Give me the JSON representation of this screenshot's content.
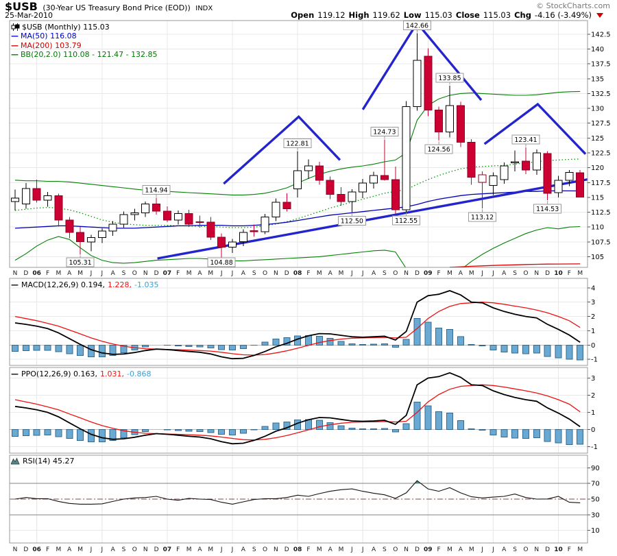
{
  "header": {
    "symbol": "$USB",
    "title": "(30-Year US Treasury Bond Price (EOD))",
    "exchange": "INDX",
    "copyright": "© StockCharts.com",
    "date": "25-Mar-2010",
    "quote": {
      "open_label": "Open",
      "open": "119.12",
      "high_label": "High",
      "high": "119.62",
      "low_label": "Low",
      "low": "115.03",
      "close_label": "Close",
      "close": "115.03",
      "chg_label": "Chg",
      "chg": "-4.16 (-3.49%)"
    }
  },
  "main_legend": {
    "dash": "—",
    "symbol": "$USB (Monthly) 115.03",
    "ma50": "MA(50) 116.08",
    "ma200": "MA(200) 103.79",
    "bb": "BB(20,2.0) 110.08 - 121.47 - 132.85"
  },
  "macd_legend": {
    "dash": "—",
    "name": "MACD(12,26,9) 0.194,",
    "signal": "1.228,",
    "hist": "-1.035"
  },
  "ppo_legend": {
    "dash": "—",
    "name": "PPO(12,26,9) 0.163,",
    "signal": "1.031,",
    "hist": "-0.868"
  },
  "rsi_legend": {
    "name": "RSI(14) 45.27"
  },
  "colors": {
    "candle_red": "#cc0033",
    "candle_red_border": "#8c0022",
    "trend_blue": "#2424cc",
    "ma50_blue": "#0000b3",
    "ma200_red": "#dd0000",
    "bb_green": "#008000",
    "bb_mid_green": "#009900",
    "hist_fill": "#6aaad2",
    "hist_border": "#35688e",
    "signal_red": "#ee1111",
    "macd_black": "#000000",
    "teal": "#4e8a8a",
    "grid": "#e8e8e8",
    "border": "#999999",
    "rsi_mid": "#8b4545",
    "rsi_band": "#808080"
  },
  "chart_data": {
    "type": "candlestick+indicators",
    "months": [
      "N",
      "D",
      "06",
      "F",
      "M",
      "A",
      "M",
      "J",
      "J",
      "A",
      "S",
      "O",
      "N",
      "D",
      "07",
      "F",
      "M",
      "A",
      "M",
      "J",
      "J",
      "A",
      "S",
      "O",
      "N",
      "D",
      "08",
      "F",
      "M",
      "A",
      "M",
      "J",
      "J",
      "A",
      "S",
      "O",
      "N",
      "D",
      "09",
      "F",
      "M",
      "A",
      "M",
      "J",
      "J",
      "A",
      "S",
      "O",
      "N",
      "D",
      "10",
      "F",
      "M"
    ],
    "grid_month_indices": [
      2,
      8,
      14,
      20,
      26,
      32,
      38,
      44,
      50
    ],
    "price_panel": {
      "ylim": [
        103.2,
        144.8
      ],
      "yticks": [
        105.0,
        107.5,
        110.0,
        112.5,
        115.0,
        117.5,
        120.0,
        122.5,
        125.0,
        127.5,
        130.0,
        132.5,
        135.0,
        137.5,
        140.0,
        142.5
      ],
      "candles": [
        [
          114.3,
          116.3,
          112.8,
          114.9
        ],
        [
          113.9,
          117.4,
          113.1,
          116.5
        ],
        [
          116.5,
          118.0,
          114.1,
          114.5
        ],
        [
          114.5,
          115.9,
          113.4,
          115.3
        ],
        [
          115.3,
          115.6,
          110.1,
          111.2
        ],
        [
          111.2,
          111.7,
          108.1,
          109.1
        ],
        [
          109.1,
          110.0,
          105.31,
          107.5
        ],
        [
          107.5,
          108.7,
          105.9,
          108.2
        ],
        [
          108.2,
          109.8,
          107.3,
          109.3
        ],
        [
          109.3,
          111.0,
          108.5,
          110.5
        ],
        [
          110.5,
          112.6,
          109.9,
          112.1
        ],
        [
          112.1,
          113.1,
          111.1,
          112.4
        ],
        [
          112.4,
          114.3,
          111.7,
          113.9
        ],
        [
          113.9,
          114.94,
          112.1,
          112.7
        ],
        [
          112.7,
          113.5,
          110.8,
          111.2
        ],
        [
          111.2,
          112.8,
          110.4,
          112.3
        ],
        [
          112.3,
          112.9,
          110.0,
          110.5
        ],
        [
          110.9,
          111.9,
          109.9,
          110.8
        ],
        [
          110.8,
          111.7,
          107.8,
          108.3
        ],
        [
          108.3,
          108.9,
          104.88,
          106.6
        ],
        [
          106.6,
          108.0,
          105.6,
          107.5
        ],
        [
          107.5,
          109.6,
          106.8,
          109.1
        ],
        [
          109.4,
          110.4,
          108.4,
          109.2
        ],
        [
          109.2,
          112.2,
          108.8,
          111.7
        ],
        [
          111.7,
          114.8,
          111.0,
          114.2
        ],
        [
          114.2,
          115.7,
          112.6,
          113.1
        ],
        [
          116.4,
          122.81,
          115.0,
          119.5
        ],
        [
          119.5,
          121.4,
          118.1,
          120.3
        ],
        [
          120.3,
          121.0,
          117.1,
          117.9
        ],
        [
          117.9,
          118.5,
          114.7,
          115.5
        ],
        [
          115.5,
          116.7,
          113.6,
          114.3
        ],
        [
          114.3,
          116.4,
          112.5,
          115.9
        ],
        [
          115.9,
          118.1,
          114.9,
          117.4
        ],
        [
          117.4,
          119.3,
          116.5,
          118.7
        ],
        [
          118.7,
          124.73,
          117.8,
          118.0
        ],
        [
          118.0,
          120.2,
          112.3,
          112.9
        ],
        [
          112.9,
          131.2,
          112.55,
          130.3
        ],
        [
          130.3,
          142.66,
          129.6,
          138.1
        ],
        [
          138.8,
          140.1,
          128.7,
          129.7
        ],
        [
          129.7,
          130.3,
          124.56,
          126.0
        ],
        [
          126.0,
          133.85,
          125.1,
          130.5
        ],
        [
          130.5,
          131.1,
          123.5,
          124.3
        ],
        [
          124.3,
          124.8,
          117.1,
          118.4
        ],
        [
          117.5,
          119.4,
          113.12,
          118.8,
          1
        ],
        [
          117.0,
          119.2,
          115.4,
          118.6
        ],
        [
          118.0,
          120.9,
          117.3,
          120.3
        ],
        [
          120.8,
          122.9,
          119.4,
          121.0
        ],
        [
          121.1,
          123.41,
          118.9,
          119.6
        ],
        [
          119.6,
          123.1,
          118.8,
          122.5
        ],
        [
          122.4,
          122.8,
          114.53,
          115.7
        ],
        [
          115.8,
          118.6,
          115.0,
          117.9
        ],
        [
          117.9,
          119.6,
          116.9,
          119.19
        ],
        [
          119.12,
          119.62,
          115.03,
          115.03
        ]
      ],
      "ma50": [
        109.8,
        109.9,
        110.0,
        110.1,
        110.2,
        110.2,
        110.1,
        110.0,
        109.9,
        109.8,
        109.8,
        109.8,
        109.9,
        110.0,
        110.1,
        110.2,
        110.2,
        110.3,
        110.3,
        110.3,
        110.2,
        110.2,
        110.3,
        110.4,
        110.6,
        110.8,
        111.1,
        111.4,
        111.7,
        112.0,
        112.2,
        112.4,
        112.6,
        112.8,
        113.0,
        113.2,
        113.4,
        113.8,
        114.3,
        114.7,
        115.0,
        115.3,
        115.5,
        115.6,
        115.7,
        115.8,
        115.9,
        116.0,
        116.0,
        116.1,
        116.1,
        116.1,
        116.08
      ],
      "ma200": [
        null,
        null,
        null,
        null,
        null,
        null,
        null,
        null,
        null,
        null,
        null,
        null,
        null,
        null,
        null,
        null,
        null,
        null,
        null,
        null,
        null,
        null,
        null,
        null,
        null,
        null,
        null,
        null,
        null,
        null,
        null,
        null,
        null,
        null,
        null,
        null,
        null,
        null,
        null,
        null,
        103.22,
        103.3,
        103.38,
        103.45,
        103.52,
        103.58,
        103.63,
        103.68,
        103.72,
        103.75,
        103.77,
        103.78,
        103.79
      ],
      "bb_upper": [
        117.9,
        117.8,
        117.8,
        117.7,
        117.7,
        117.6,
        117.4,
        117.2,
        117.0,
        116.8,
        116.6,
        116.4,
        116.2,
        116.1,
        116.0,
        115.9,
        115.8,
        115.7,
        115.6,
        115.5,
        115.4,
        115.4,
        115.5,
        115.7,
        116.1,
        116.6,
        117.4,
        118.2,
        118.9,
        119.4,
        119.8,
        120.1,
        120.3,
        120.6,
        121.0,
        121.3,
        122.5,
        128.0,
        130.5,
        131.6,
        132.2,
        132.5,
        132.6,
        132.5,
        132.4,
        132.3,
        132.2,
        132.2,
        132.3,
        132.5,
        132.7,
        132.8,
        132.85
      ],
      "bb_mid": [
        112.8,
        113.0,
        113.2,
        113.3,
        113.2,
        112.9,
        112.4,
        111.8,
        111.2,
        110.8,
        110.5,
        110.4,
        110.3,
        110.3,
        110.3,
        110.2,
        110.2,
        110.1,
        110.1,
        110.0,
        109.9,
        109.9,
        110.0,
        110.2,
        110.5,
        110.9,
        111.4,
        112.0,
        112.6,
        113.2,
        113.7,
        114.2,
        114.7,
        115.2,
        115.7,
        116.0,
        116.3,
        117.2,
        118.0,
        118.7,
        119.3,
        119.8,
        120.1,
        120.2,
        120.3,
        120.4,
        120.6,
        120.8,
        121.0,
        121.2,
        121.3,
        121.4,
        121.47
      ],
      "bb_lower": [
        104.4,
        105.5,
        106.8,
        107.8,
        108.4,
        107.9,
        106.5,
        105.2,
        104.4,
        104.0,
        103.9,
        104.0,
        104.2,
        104.4,
        104.5,
        104.6,
        104.7,
        104.7,
        104.6,
        104.4,
        104.3,
        104.3,
        104.4,
        104.5,
        104.6,
        104.7,
        104.8,
        104.9,
        105.0,
        105.2,
        105.4,
        105.6,
        105.8,
        106.0,
        106.1,
        105.8,
        103.0,
        99.0,
        98.6,
        99.6,
        101.2,
        102.8,
        104.2,
        105.4,
        106.4,
        107.3,
        108.1,
        108.9,
        109.5,
        109.9,
        109.7,
        110.0,
        110.08
      ],
      "trendlines": [
        [
          [
            13.1,
            104.7
          ],
          [
            53.2,
            118.2
          ]
        ],
        [
          [
            19.2,
            117.3
          ],
          [
            26.1,
            128.6
          ],
          [
            29.9,
            121.3
          ]
        ],
        [
          [
            32.0,
            129.8
          ],
          [
            37.0,
            144.4
          ],
          [
            42.9,
            131.4
          ]
        ],
        [
          [
            43.2,
            124.0
          ],
          [
            48.1,
            130.7
          ],
          [
            52.5,
            122.3
          ]
        ]
      ],
      "annotations": [
        {
          "m": 6,
          "p": 105.31,
          "text": "105.31",
          "pos": "below"
        },
        {
          "m": 13,
          "p": 114.94,
          "text": "114.94",
          "pos": "above"
        },
        {
          "m": 19,
          "p": 104.88,
          "text": "104.88",
          "pos": "below"
        },
        {
          "m": 26,
          "p": 122.81,
          "text": "122.81",
          "pos": "above"
        },
        {
          "m": 31,
          "p": 112.5,
          "text": "112.50",
          "pos": "below"
        },
        {
          "m": 34,
          "p": 124.73,
          "text": "124.73",
          "pos": "above"
        },
        {
          "m": 36,
          "p": 112.55,
          "text": "112.55",
          "pos": "below"
        },
        {
          "m": 37,
          "p": 142.66,
          "text": "142.66",
          "pos": "above"
        },
        {
          "m": 39,
          "p": 124.56,
          "text": "124.56",
          "pos": "below"
        },
        {
          "m": 40,
          "p": 133.85,
          "text": "133.85",
          "pos": "above"
        },
        {
          "m": 43,
          "p": 113.12,
          "text": "113.12",
          "pos": "below"
        },
        {
          "m": 47,
          "p": 123.41,
          "text": "123.41",
          "pos": "above"
        },
        {
          "m": 49,
          "p": 114.53,
          "text": "114.53",
          "pos": "below"
        }
      ]
    },
    "macd_panel": {
      "ylim": [
        -1.42,
        4.66
      ],
      "yticks": [
        4,
        3,
        2,
        1,
        0,
        -1
      ],
      "macd": [
        1.55,
        1.45,
        1.32,
        1.15,
        0.85,
        0.45,
        0.05,
        -0.32,
        -0.55,
        -0.65,
        -0.62,
        -0.52,
        -0.38,
        -0.28,
        -0.32,
        -0.38,
        -0.45,
        -0.5,
        -0.62,
        -0.82,
        -0.95,
        -0.92,
        -0.72,
        -0.45,
        -0.12,
        0.12,
        0.42,
        0.65,
        0.8,
        0.78,
        0.68,
        0.58,
        0.55,
        0.58,
        0.62,
        0.35,
        0.95,
        3.0,
        3.45,
        3.55,
        3.8,
        3.5,
        3.0,
        2.95,
        2.6,
        2.35,
        2.15,
        2.0,
        1.9,
        1.45,
        1.1,
        0.7,
        0.194
      ],
      "signal": [
        2.0,
        1.85,
        1.7,
        1.52,
        1.32,
        1.05,
        0.78,
        0.5,
        0.27,
        0.08,
        -0.08,
        -0.18,
        -0.25,
        -0.28,
        -0.3,
        -0.32,
        -0.35,
        -0.38,
        -0.42,
        -0.5,
        -0.6,
        -0.68,
        -0.7,
        -0.66,
        -0.55,
        -0.4,
        -0.22,
        -0.02,
        0.18,
        0.32,
        0.42,
        0.48,
        0.5,
        0.52,
        0.54,
        0.5,
        0.55,
        1.15,
        1.85,
        2.35,
        2.7,
        2.9,
        2.95,
        3.0,
        2.95,
        2.85,
        2.72,
        2.6,
        2.45,
        2.25,
        2.0,
        1.7,
        1.228
      ]
    },
    "ppo_panel": {
      "ylim": [
        -1.38,
        3.62
      ],
      "yticks": [
        3,
        2,
        1,
        0,
        -1
      ],
      "ppo": [
        1.35,
        1.26,
        1.15,
        1.0,
        0.74,
        0.39,
        0.04,
        -0.28,
        -0.48,
        -0.57,
        -0.54,
        -0.45,
        -0.33,
        -0.24,
        -0.28,
        -0.33,
        -0.39,
        -0.44,
        -0.54,
        -0.71,
        -0.83,
        -0.8,
        -0.63,
        -0.39,
        -0.1,
        0.1,
        0.37,
        0.57,
        0.7,
        0.68,
        0.59,
        0.5,
        0.48,
        0.5,
        0.54,
        0.3,
        0.83,
        2.61,
        3.0,
        3.09,
        3.31,
        3.05,
        2.61,
        2.57,
        2.26,
        2.04,
        1.87,
        1.74,
        1.65,
        1.26,
        0.96,
        0.61,
        0.163
      ],
      "signal": [
        1.74,
        1.61,
        1.48,
        1.32,
        1.15,
        0.91,
        0.68,
        0.44,
        0.23,
        0.07,
        -0.07,
        -0.16,
        -0.22,
        -0.24,
        -0.26,
        -0.28,
        -0.3,
        -0.33,
        -0.37,
        -0.44,
        -0.52,
        -0.59,
        -0.61,
        -0.57,
        -0.48,
        -0.35,
        -0.19,
        -0.02,
        0.16,
        0.28,
        0.37,
        0.42,
        0.44,
        0.45,
        0.47,
        0.44,
        0.48,
        1.0,
        1.61,
        2.04,
        2.35,
        2.52,
        2.57,
        2.61,
        2.57,
        2.48,
        2.37,
        2.26,
        2.13,
        1.96,
        1.74,
        1.48,
        1.031
      ]
    },
    "rsi_panel": {
      "ylim": [
        -6,
        106
      ],
      "yticks": [
        90,
        70,
        50,
        30,
        10
      ],
      "overbought": 70,
      "oversold": 30,
      "mid": 50,
      "values": [
        50,
        52,
        50.5,
        50.5,
        47,
        44.5,
        43.5,
        43.5,
        44,
        47,
        50,
        51.5,
        52,
        53.5,
        50,
        48.5,
        51,
        50,
        49.5,
        46,
        43.5,
        46.5,
        49.5,
        50.5,
        50.5,
        52,
        55,
        53.5,
        57,
        60,
        62,
        63,
        60,
        57.5,
        55.5,
        51,
        58,
        73.5,
        63,
        60,
        64.5,
        58,
        53,
        51.5,
        52.5,
        53.5,
        56.5,
        52,
        50,
        50.2,
        53.5,
        46,
        45.27
      ]
    }
  }
}
